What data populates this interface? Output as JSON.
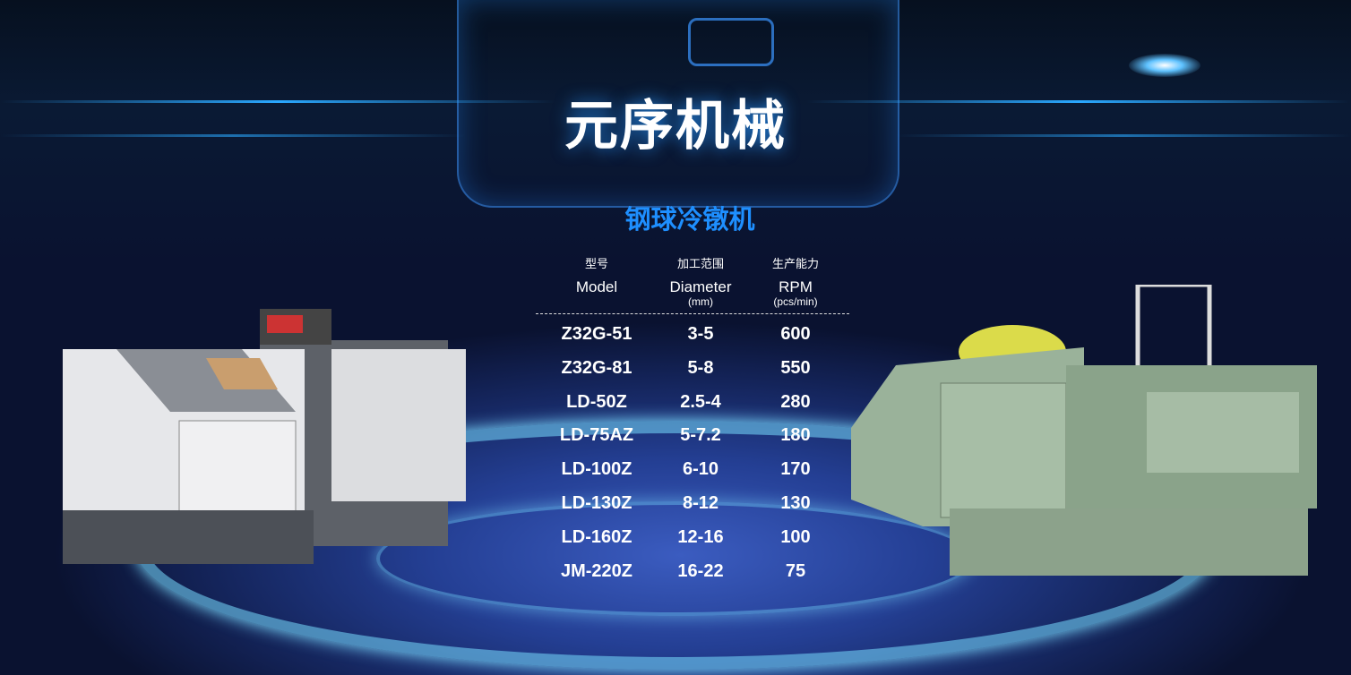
{
  "header": {
    "title": "元序机械"
  },
  "product": {
    "category": "钢球冷镦机",
    "columns": [
      {
        "cn": "型号",
        "en": "Model",
        "unit": ""
      },
      {
        "cn": "加工范围",
        "en": "Diameter",
        "unit": "(mm)"
      },
      {
        "cn": "生产能力",
        "en": "RPM",
        "unit": "(pcs/min)"
      }
    ],
    "rows": [
      {
        "model": "Z32G-51",
        "diameter": "3-5",
        "rpm": "600"
      },
      {
        "model": "Z32G-81",
        "diameter": "5-8",
        "rpm": "550"
      },
      {
        "model": "LD-50Z",
        "diameter": "2.5-4",
        "rpm": "280"
      },
      {
        "model": "LD-75AZ",
        "diameter": "5-7.2",
        "rpm": "180"
      },
      {
        "model": "LD-100Z",
        "diameter": "6-10",
        "rpm": "170"
      },
      {
        "model": "LD-130Z",
        "diameter": "8-12",
        "rpm": "130"
      },
      {
        "model": "LD-160Z",
        "diameter": "12-16",
        "rpm": "100"
      },
      {
        "model": "JM-220Z",
        "diameter": "16-22",
        "rpm": "75"
      }
    ]
  },
  "colors": {
    "title": "#ffffff",
    "category": "#1e8fff",
    "background": "#14245a"
  }
}
